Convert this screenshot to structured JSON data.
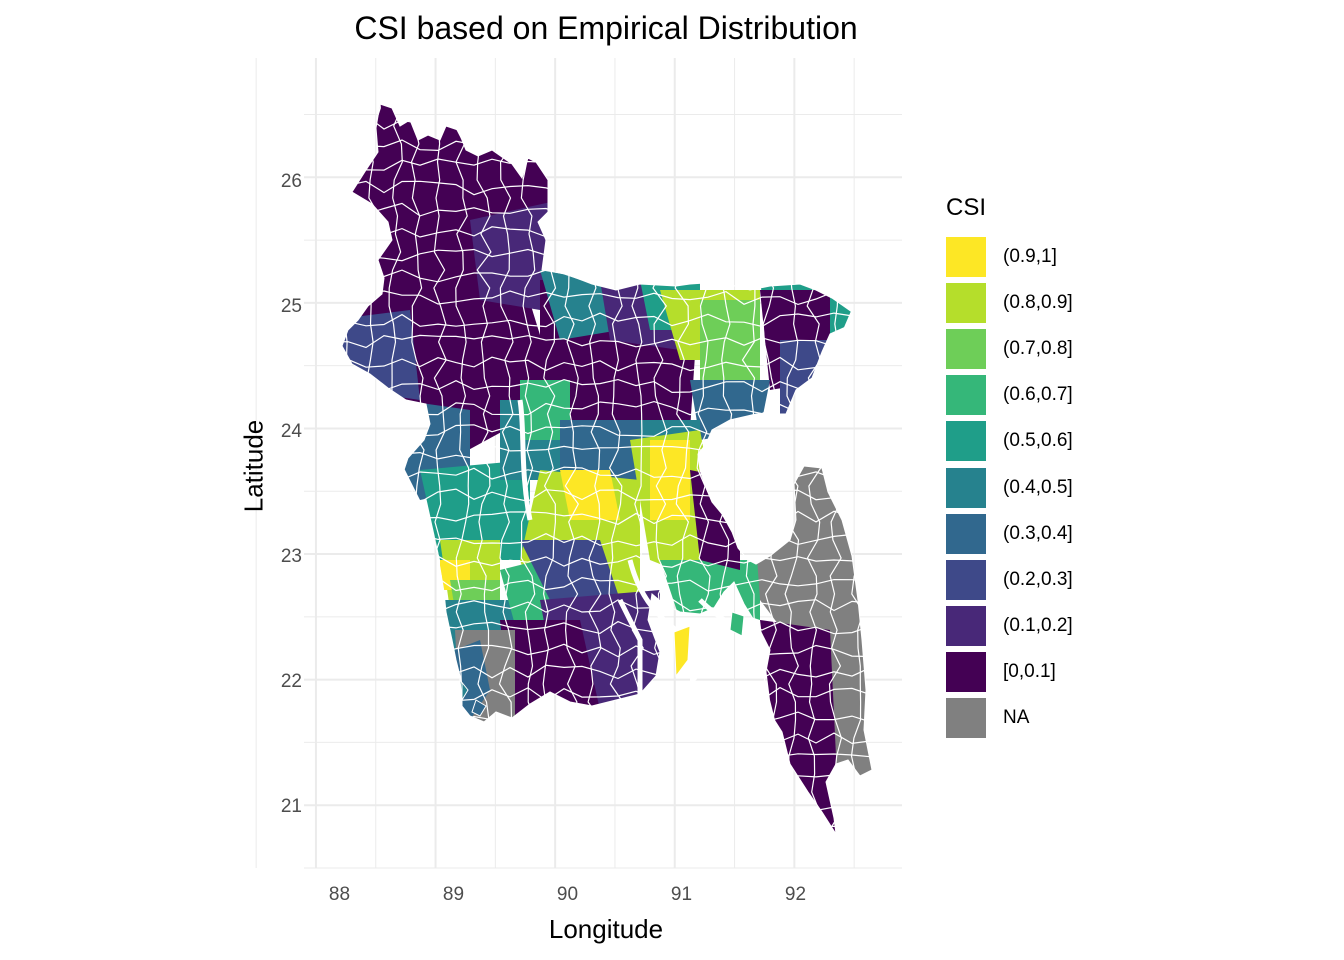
{
  "title": "CSI based on Empirical Distribution",
  "axes": {
    "x": {
      "label": "Longitude",
      "ticks": [
        "88",
        "89",
        "90",
        "91",
        "92"
      ]
    },
    "y": {
      "label": "Latitude",
      "ticks": [
        "26",
        "25",
        "24",
        "23",
        "22",
        "21"
      ]
    }
  },
  "legend": {
    "title": "CSI",
    "items": [
      {
        "label": "(0.9,1]",
        "color": "#FDE725"
      },
      {
        "label": "(0.8,0.9]",
        "color": "#B5DE2B"
      },
      {
        "label": "(0.7,0.8]",
        "color": "#6ECE58"
      },
      {
        "label": "(0.6,0.7]",
        "color": "#35B779"
      },
      {
        "label": "(0.5,0.6]",
        "color": "#1F9E89"
      },
      {
        "label": "(0.4,0.5]",
        "color": "#26828E"
      },
      {
        "label": "(0.3,0.4]",
        "color": "#31688E"
      },
      {
        "label": "(0.2,0.3]",
        "color": "#3E4989"
      },
      {
        "label": "(0.1,0.2]",
        "color": "#482878"
      },
      {
        "label": "[0,0.1]",
        "color": "#440154"
      },
      {
        "label": "NA",
        "color": "#808080"
      }
    ]
  },
  "chart_data": {
    "type": "choropleth",
    "title": "CSI based on Empirical Distribution",
    "xlabel": "Longitude",
    "ylabel": "Latitude",
    "xlim": [
      87.9,
      92.9
    ],
    "ylim": [
      20.5,
      26.95
    ],
    "x_ticks": [
      88,
      89,
      90,
      91,
      92
    ],
    "y_ticks": [
      21,
      22,
      23,
      24,
      25,
      26
    ],
    "grid": true,
    "legend_position": "right",
    "region_count_approx": 540,
    "class_coverage_note": "mostly [0,0.1] and (0.1,0.2] in north/west; higher classes in central band; NA in southeast"
  }
}
